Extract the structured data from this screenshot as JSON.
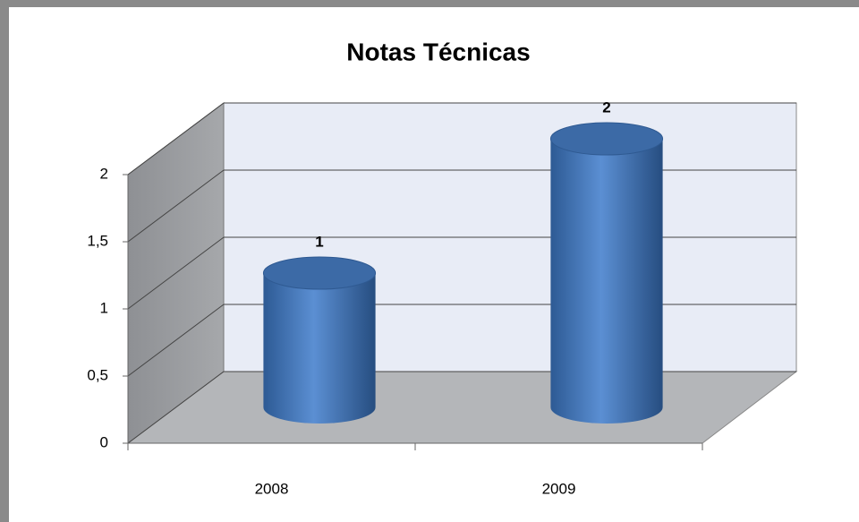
{
  "chart_data": {
    "type": "bar3d-cylinder",
    "title": "Notas Técnicas",
    "categories": [
      "2008",
      "2009"
    ],
    "values": [
      1,
      2
    ],
    "color": "#4f81bd",
    "ylim": [
      0,
      2
    ],
    "yticks": [
      0,
      {
        "value": 0.5,
        "label": "0,5"
      },
      1,
      {
        "value": 1.5,
        "label": "1,5"
      },
      2
    ],
    "grid": true
  }
}
